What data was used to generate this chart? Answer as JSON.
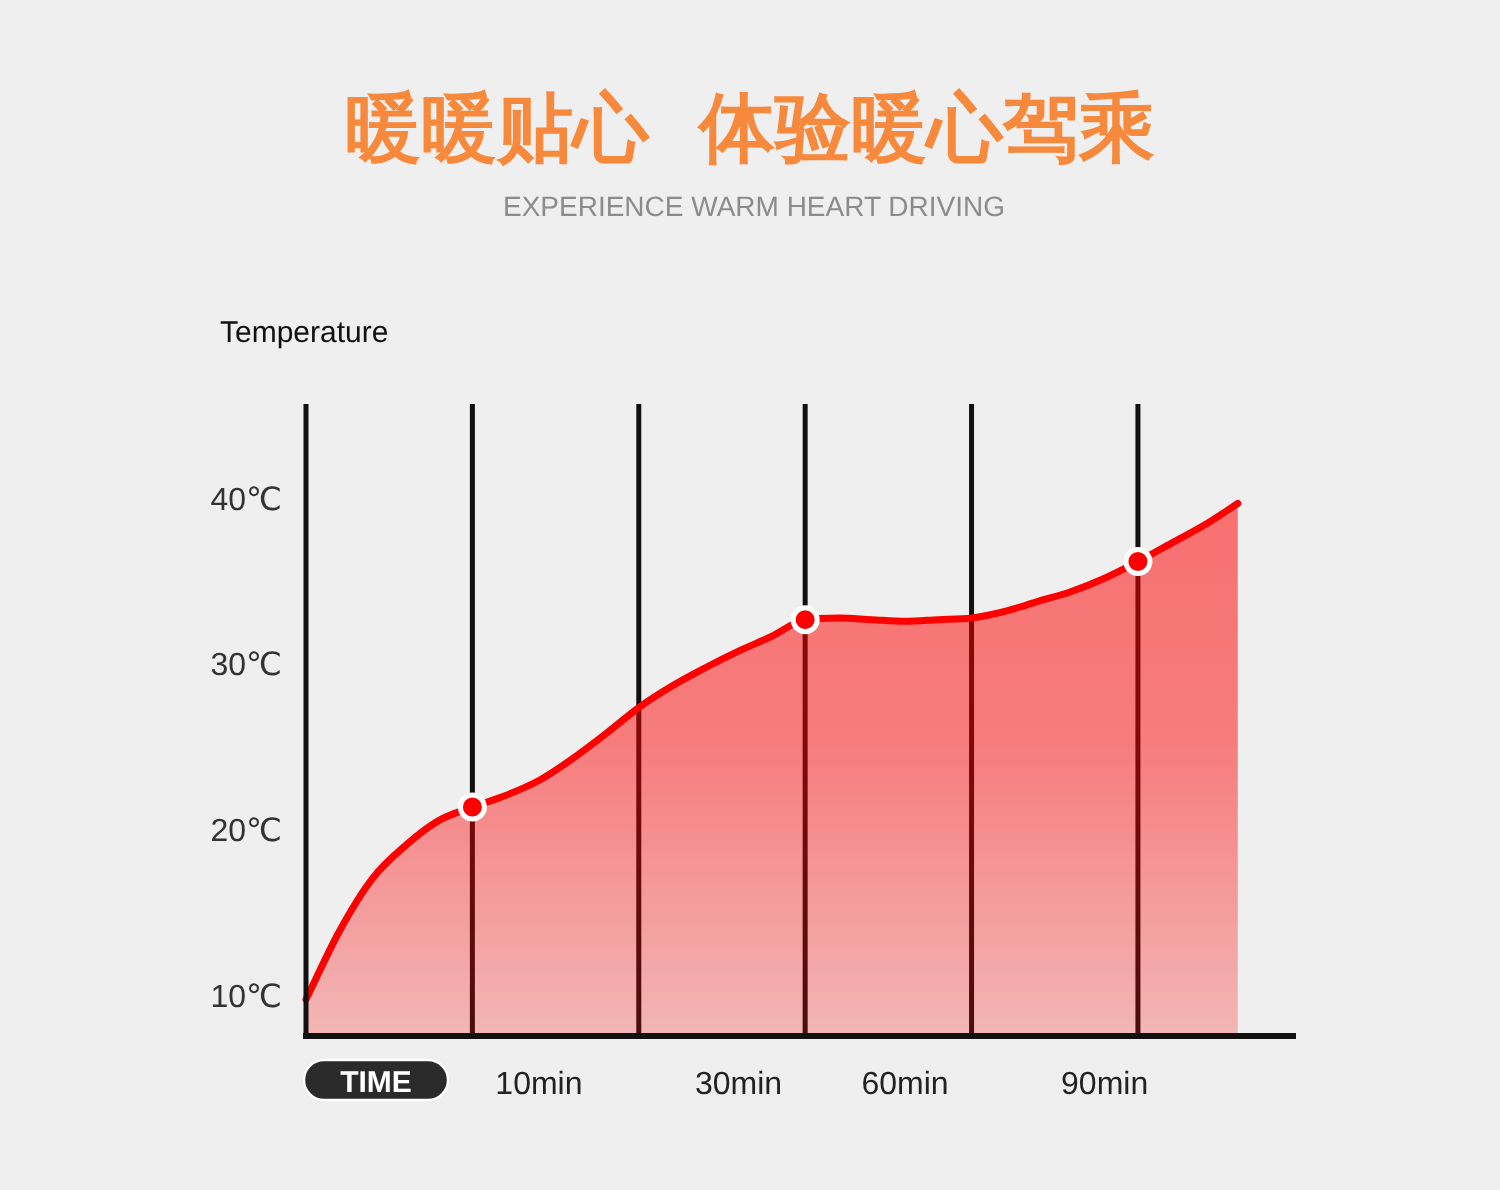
{
  "chart_data": {
    "type": "area",
    "title": "暖暖贴心 体验暖心驾乘",
    "subtitle": "EXPERIENCE WARM HEART DRIVING",
    "xlabel": "TIME",
    "ylabel": "Temperature",
    "categories": [
      null,
      null,
      null,
      null,
      null,
      null,
      null,
      "10min",
      null,
      null,
      null,
      null,
      null,
      "30min",
      null,
      null,
      null,
      null,
      "60min",
      null,
      null,
      null,
      null,
      null,
      "90min",
      null,
      null,
      null,
      null
    ],
    "ylim": [
      7.6,
      45.7
    ],
    "yticks": [
      {
        "value": 10,
        "label": "10℃"
      },
      {
        "value": 20,
        "label": "20℃"
      },
      {
        "value": 30,
        "label": "30℃"
      },
      {
        "value": 40,
        "label": "40℃"
      }
    ],
    "grid": "x",
    "series": [
      {
        "color": "#ff0000",
        "values": [
          9.8,
          13.9,
          17.1,
          19.1,
          20.6,
          21.4,
          22.1,
          23.0,
          24.3,
          25.8,
          27.4,
          28.7,
          29.8,
          30.8,
          31.7,
          32.7,
          32.8,
          32.7,
          32.6,
          32.7,
          32.8,
          33.2,
          33.8,
          34.4,
          35.2,
          36.2,
          37.3,
          38.4,
          39.7
        ]
      },
      {
        "type": "scatter",
        "color": "#ff0000",
        "marker": "circle",
        "values": [
          null,
          null,
          null,
          null,
          null,
          21.4,
          null,
          null,
          null,
          null,
          null,
          null,
          null,
          null,
          null,
          32.7,
          null,
          null,
          null,
          null,
          null,
          null,
          null,
          null,
          null,
          36.2,
          null,
          null,
          null
        ]
      }
    ]
  }
}
